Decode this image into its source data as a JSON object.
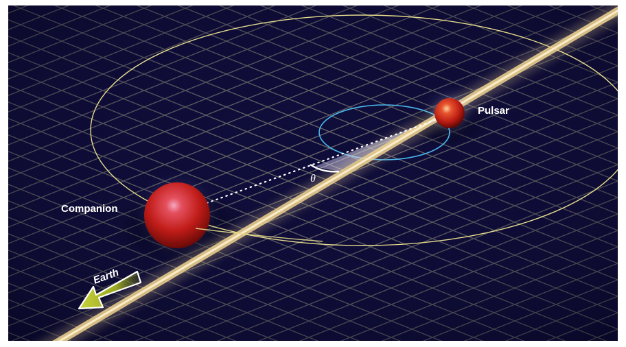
{
  "labels": {
    "pulsar": "Pulsar",
    "companion": "Companion",
    "earth": "Earth",
    "angle": "θ"
  },
  "colors": {
    "background": "#0e0c38",
    "grid": "#6f6f6a",
    "outer_orbit": "#e6dc8c",
    "inner_orbit": "#4ab8ee",
    "beam": "#f1d79a",
    "star_red": "#c8201a",
    "earth_arrow": "#b4c22a",
    "frame": "#ffffff"
  },
  "icons": {
    "earth_direction": "arrow-left-icon"
  }
}
